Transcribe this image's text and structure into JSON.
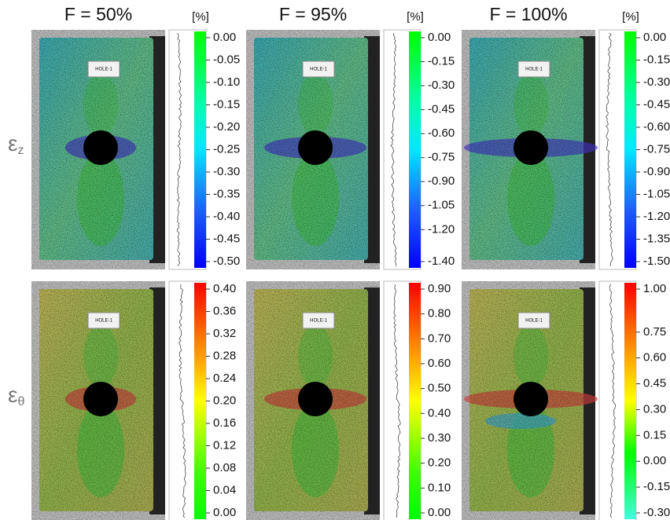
{
  "columns": [
    {
      "title": "F = 50%"
    },
    {
      "title": "F = 95%"
    },
    {
      "title": "F = 100%"
    }
  ],
  "rows": [
    {
      "symbol": "ε",
      "subscript": "z"
    },
    {
      "symbol": "ε",
      "subscript": "θ"
    }
  ],
  "panels": [
    {
      "unit": "[%]",
      "specimen_label": "HOLE-1",
      "ticks": [
        {
          "value": 0,
          "label": "0.00"
        },
        {
          "value": -0.05,
          "label": "-0.05"
        },
        {
          "value": -0.1,
          "label": "-0.10"
        },
        {
          "value": -0.15,
          "label": "-0.15"
        },
        {
          "value": -0.2,
          "label": "-0.20"
        },
        {
          "value": -0.25,
          "label": "-0.25"
        },
        {
          "value": -0.3,
          "label": "-0.30"
        },
        {
          "value": -0.35,
          "label": "-0.35"
        },
        {
          "value": -0.4,
          "label": "-0.40"
        },
        {
          "value": -0.45,
          "label": "-0.45"
        },
        {
          "value": -0.5,
          "label": "-0.50"
        }
      ]
    },
    {
      "unit": "[%]",
      "specimen_label": "HOLE-1",
      "ticks": [
        {
          "value": 0,
          "label": "0.00"
        },
        {
          "value": -0.15,
          "label": "-0.15"
        },
        {
          "value": -0.3,
          "label": "-0.30"
        },
        {
          "value": -0.45,
          "label": "-0.45"
        },
        {
          "value": -0.6,
          "label": "-0.60"
        },
        {
          "value": -0.75,
          "label": "-0.75"
        },
        {
          "value": -0.9,
          "label": "-0.90"
        },
        {
          "value": -1.05,
          "label": "-1.05"
        },
        {
          "value": -1.2,
          "label": "-1.20"
        },
        {
          "value": -1.4,
          "label": "-1.40"
        }
      ]
    },
    {
      "unit": "[%]",
      "specimen_label": "HOLE-1",
      "ticks": [
        {
          "value": 0,
          "label": "0.00"
        },
        {
          "value": -0.15,
          "label": "-0.15"
        },
        {
          "value": -0.3,
          "label": "-0.30"
        },
        {
          "value": -0.45,
          "label": "-0.45"
        },
        {
          "value": -0.6,
          "label": "-0.60"
        },
        {
          "value": -0.75,
          "label": "-0.75"
        },
        {
          "value": -0.9,
          "label": "-0.90"
        },
        {
          "value": -1.05,
          "label": "-1.05"
        },
        {
          "value": -1.2,
          "label": "-1.20"
        },
        {
          "value": -1.35,
          "label": "-1.35"
        },
        {
          "value": -1.5,
          "label": "-1.50"
        }
      ]
    },
    {
      "ticks": [
        {
          "value": 0.4,
          "label": "0.40"
        },
        {
          "value": 0.36,
          "label": "0.36"
        },
        {
          "value": 0.32,
          "label": "0.32"
        },
        {
          "value": 0.28,
          "label": "0.28"
        },
        {
          "value": 0.24,
          "label": "0.24"
        },
        {
          "value": 0.2,
          "label": "0.20"
        },
        {
          "value": 0.16,
          "label": "0.16"
        },
        {
          "value": 0.12,
          "label": "0.12"
        },
        {
          "value": 0.08,
          "label": "0.08"
        },
        {
          "value": 0.04,
          "label": "0.04"
        },
        {
          "value": 0,
          "label": "0.00"
        }
      ],
      "specimen_label": "HOLE-1"
    },
    {
      "ticks": [
        {
          "value": 0.9,
          "label": "0.90"
        },
        {
          "value": 0.8,
          "label": "0.80"
        },
        {
          "value": 0.7,
          "label": "0.70"
        },
        {
          "value": 0.6,
          "label": "0.60"
        },
        {
          "value": 0.5,
          "label": "0.50"
        },
        {
          "value": 0.4,
          "label": "0.40"
        },
        {
          "value": 0.3,
          "label": "0.30"
        },
        {
          "value": 0.2,
          "label": "0.20"
        },
        {
          "value": 0.1,
          "label": "0.10"
        },
        {
          "value": 0,
          "label": "0.00"
        }
      ],
      "specimen_label": "HOLE-1"
    },
    {
      "ticks": [
        {
          "value": 1,
          "label": "1.00"
        },
        {
          "value": 0.75,
          "label": "0.75"
        },
        {
          "value": 0.6,
          "label": "0.60"
        },
        {
          "value": 0.45,
          "label": "0.45"
        },
        {
          "value": 0.3,
          "label": "0.30"
        },
        {
          "value": 0.15,
          "label": "0.15"
        },
        {
          "value": 0,
          "label": "0.00"
        },
        {
          "value": -0.15,
          "label": "-0.15"
        },
        {
          "value": -0.3,
          "label": "-0.30"
        }
      ],
      "specimen_label": "HOLE-1"
    }
  ]
}
